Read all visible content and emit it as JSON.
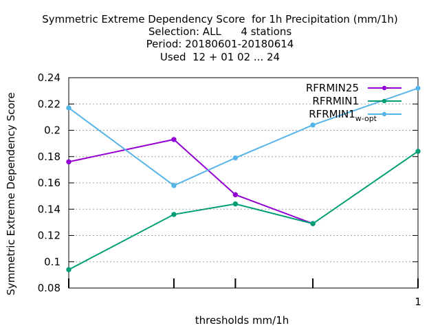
{
  "chart_data": {
    "type": "line",
    "title_lines": [
      "Symmetric Extreme Dependency Score  for 1h Precipitation (mm/1h)",
      "Selection: ALL      4 stations",
      "Period: 20180601-20180614",
      "Used  12 + 01 02 ... 24"
    ],
    "xlabel": "thresholds mm/1h",
    "ylabel": "Symmetric Extreme Dependency Score",
    "x_scale": "log",
    "x": [
      0.1,
      0.2,
      0.3,
      0.5,
      1.0
    ],
    "x_tick_labels": [
      {
        "x": 1.0,
        "label": "1"
      }
    ],
    "xlim": [
      0.1,
      1.0
    ],
    "ylim": [
      0.08,
      0.24
    ],
    "y_ticks": [
      "0.08",
      "0.1",
      "0.12",
      "0.14",
      "0.16",
      "0.18",
      "0.2",
      "0.22",
      "0.24"
    ],
    "grid": "horizontal dotted",
    "legend_position": "top-right",
    "series": [
      {
        "name": "RFRMIN25",
        "color": "#9400d3",
        "values": [
          0.176,
          0.193,
          0.151,
          0.129,
          null
        ]
      },
      {
        "name": "RFRMIN1",
        "color": "#009e73",
        "values": [
          0.094,
          0.136,
          0.144,
          0.129,
          0.184
        ]
      },
      {
        "name": "RFRMIN1",
        "name_subscript": "w-opt",
        "color": "#56b4e9",
        "values": [
          0.217,
          0.158,
          0.179,
          0.204,
          0.232
        ]
      }
    ]
  }
}
